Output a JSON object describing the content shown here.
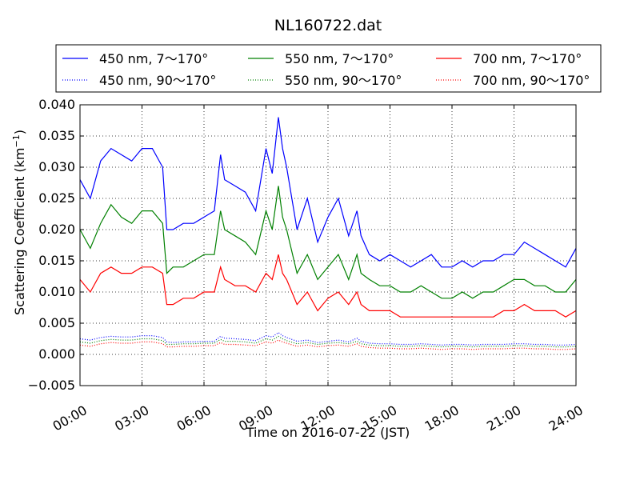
{
  "chart_data": {
    "type": "line",
    "title": "NL160722.dat",
    "xlabel": "Time on 2016-07-22 (JST)",
    "ylabel_main": "Scattering Coefficient (km",
    "ylabel_exp": "−1",
    "ylabel_close": ")",
    "x_unit": "hour",
    "xlim": [
      0,
      24
    ],
    "ylim": [
      -0.005,
      0.04
    ],
    "x_ticks": [
      0,
      3,
      6,
      9,
      12,
      15,
      18,
      21,
      24
    ],
    "x_tick_labels": [
      "00:00",
      "03:00",
      "06:00",
      "09:00",
      "12:00",
      "15:00",
      "18:00",
      "21:00",
      "24:00"
    ],
    "y_ticks": [
      -0.005,
      0.0,
      0.005,
      0.01,
      0.015,
      0.02,
      0.025,
      0.03,
      0.035,
      0.04
    ],
    "y_tick_labels": [
      "−0.005",
      "0.000",
      "0.005",
      "0.010",
      "0.015",
      "0.020",
      "0.025",
      "0.030",
      "0.035",
      "0.040"
    ],
    "grid": true,
    "legend_position": "top",
    "x": [
      0,
      0.5,
      1,
      1.5,
      2,
      2.5,
      3,
      3.5,
      4,
      4.2,
      4.5,
      5,
      5.5,
      6,
      6.5,
      6.8,
      7,
      7.5,
      8,
      8.5,
      9,
      9.3,
      9.6,
      9.8,
      10,
      10.5,
      11,
      11.5,
      12,
      12.5,
      13,
      13.4,
      13.6,
      14,
      14.5,
      15,
      15.5,
      16,
      16.5,
      17,
      17.5,
      18,
      18.5,
      19,
      19.5,
      20,
      20.5,
      21,
      21.5,
      22,
      22.5,
      23,
      23.5,
      24
    ],
    "series": [
      {
        "name": "450 nm, 7～170°",
        "color": "#0000ff",
        "style": "solid",
        "values": [
          0.028,
          0.025,
          0.031,
          0.033,
          0.032,
          0.031,
          0.033,
          0.033,
          0.03,
          0.02,
          0.02,
          0.021,
          0.021,
          0.022,
          0.023,
          0.032,
          0.028,
          0.027,
          0.026,
          0.023,
          0.033,
          0.029,
          0.038,
          0.033,
          0.03,
          0.02,
          0.025,
          0.018,
          0.022,
          0.025,
          0.019,
          0.023,
          0.019,
          0.016,
          0.015,
          0.016,
          0.015,
          0.014,
          0.015,
          0.016,
          0.014,
          0.014,
          0.015,
          0.014,
          0.015,
          0.015,
          0.016,
          0.016,
          0.018,
          0.017,
          0.016,
          0.015,
          0.014,
          0.017
        ]
      },
      {
        "name": "550 nm, 7～170°",
        "color": "#008000",
        "style": "solid",
        "values": [
          0.02,
          0.017,
          0.021,
          0.024,
          0.022,
          0.021,
          0.023,
          0.023,
          0.021,
          0.013,
          0.014,
          0.014,
          0.015,
          0.016,
          0.016,
          0.023,
          0.02,
          0.019,
          0.018,
          0.016,
          0.023,
          0.02,
          0.027,
          0.022,
          0.02,
          0.013,
          0.016,
          0.012,
          0.014,
          0.016,
          0.012,
          0.016,
          0.013,
          0.012,
          0.011,
          0.011,
          0.01,
          0.01,
          0.011,
          0.01,
          0.009,
          0.009,
          0.01,
          0.009,
          0.01,
          0.01,
          0.011,
          0.012,
          0.012,
          0.011,
          0.011,
          0.01,
          0.01,
          0.012
        ]
      },
      {
        "name": "700 nm, 7～170°",
        "color": "#ff0000",
        "style": "solid",
        "values": [
          0.012,
          0.01,
          0.013,
          0.014,
          0.013,
          0.013,
          0.014,
          0.014,
          0.013,
          0.008,
          0.008,
          0.009,
          0.009,
          0.01,
          0.01,
          0.014,
          0.012,
          0.011,
          0.011,
          0.01,
          0.013,
          0.012,
          0.016,
          0.013,
          0.012,
          0.008,
          0.01,
          0.007,
          0.009,
          0.01,
          0.008,
          0.01,
          0.008,
          0.007,
          0.007,
          0.007,
          0.006,
          0.006,
          0.006,
          0.006,
          0.006,
          0.006,
          0.006,
          0.006,
          0.006,
          0.006,
          0.007,
          0.007,
          0.008,
          0.007,
          0.007,
          0.007,
          0.006,
          0.007
        ]
      },
      {
        "name": "450 nm, 90～170°",
        "color": "#0000ff",
        "style": "dotted",
        "values": [
          0.0025,
          0.0023,
          0.0027,
          0.0029,
          0.0028,
          0.0028,
          0.003,
          0.003,
          0.0027,
          0.002,
          0.0019,
          0.002,
          0.002,
          0.0021,
          0.0021,
          0.0029,
          0.0026,
          0.0025,
          0.0024,
          0.0022,
          0.003,
          0.0028,
          0.0035,
          0.003,
          0.0027,
          0.0021,
          0.0023,
          0.0019,
          0.0021,
          0.0023,
          0.002,
          0.0026,
          0.0021,
          0.0018,
          0.0017,
          0.0017,
          0.0016,
          0.0016,
          0.0017,
          0.0016,
          0.0015,
          0.0016,
          0.0016,
          0.0015,
          0.0016,
          0.0016,
          0.0016,
          0.0017,
          0.0017,
          0.0016,
          0.0016,
          0.0015,
          0.0015,
          0.0016
        ]
      },
      {
        "name": "550 nm, 90～170°",
        "color": "#008000",
        "style": "dotted",
        "values": [
          0.002,
          0.0018,
          0.0022,
          0.0024,
          0.0023,
          0.0023,
          0.0025,
          0.0025,
          0.0022,
          0.0016,
          0.0016,
          0.0017,
          0.0017,
          0.0018,
          0.0018,
          0.0024,
          0.0021,
          0.0021,
          0.002,
          0.0018,
          0.0025,
          0.0023,
          0.0029,
          0.0025,
          0.0022,
          0.0017,
          0.0019,
          0.0016,
          0.0018,
          0.0019,
          0.0017,
          0.0021,
          0.0017,
          0.0015,
          0.0014,
          0.0014,
          0.0013,
          0.0013,
          0.0014,
          0.0013,
          0.0012,
          0.0013,
          0.0013,
          0.0012,
          0.0013,
          0.0013,
          0.0013,
          0.0014,
          0.0014,
          0.0013,
          0.0013,
          0.0012,
          0.0012,
          0.0013
        ]
      },
      {
        "name": "700 nm, 90～170°",
        "color": "#ff0000",
        "style": "dotted",
        "values": [
          0.0015,
          0.0013,
          0.0017,
          0.0019,
          0.0018,
          0.0018,
          0.002,
          0.002,
          0.0017,
          0.0012,
          0.0012,
          0.0013,
          0.0013,
          0.0014,
          0.0014,
          0.0019,
          0.0016,
          0.0016,
          0.0015,
          0.0014,
          0.002,
          0.0018,
          0.0023,
          0.002,
          0.0018,
          0.0013,
          0.0015,
          0.0012,
          0.0014,
          0.0015,
          0.0013,
          0.0017,
          0.0013,
          0.0011,
          0.001,
          0.001,
          0.0009,
          0.0009,
          0.001,
          0.0009,
          0.0008,
          0.0009,
          0.0009,
          0.0008,
          0.0009,
          0.0009,
          0.0009,
          0.001,
          0.001,
          0.0009,
          0.0009,
          0.0008,
          0.0008,
          0.0009
        ]
      }
    ]
  }
}
